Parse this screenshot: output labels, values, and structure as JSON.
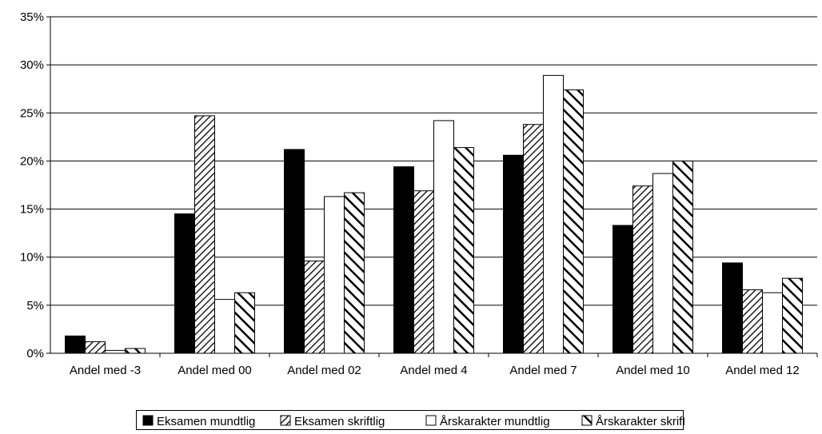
{
  "chart_data": {
    "type": "bar",
    "title": "",
    "xlabel": "",
    "ylabel": "",
    "categories": [
      "Andel med -3",
      "Andel med 00",
      "Andel med 02",
      "Andel med 4",
      "Andel med 7",
      "Andel med 10",
      "Andel med 12"
    ],
    "yticks": [
      "0%",
      "5%",
      "10%",
      "15%",
      "20%",
      "25%",
      "30%",
      "35%"
    ],
    "ylim": [
      0,
      35
    ],
    "grid": true,
    "legend_position": "bottom",
    "series": [
      {
        "name": "Eksamen mundtlig",
        "pattern": "solid-black",
        "values": [
          1.8,
          14.5,
          21.2,
          19.4,
          20.6,
          13.3,
          9.4
        ]
      },
      {
        "name": "Eksamen skriftlig",
        "pattern": "hatch-light",
        "values": [
          1.2,
          24.7,
          9.6,
          16.9,
          23.8,
          17.4,
          6.6
        ]
      },
      {
        "name": "Årskarakter mundtlig",
        "pattern": "white",
        "values": [
          0.3,
          5.6,
          16.3,
          24.2,
          28.9,
          18.7,
          6.3
        ]
      },
      {
        "name": "Årskarakter skriftlig",
        "pattern": "hatch-bold",
        "values": [
          0.5,
          6.3,
          16.7,
          21.4,
          27.4,
          20.0,
          7.8
        ]
      }
    ]
  }
}
